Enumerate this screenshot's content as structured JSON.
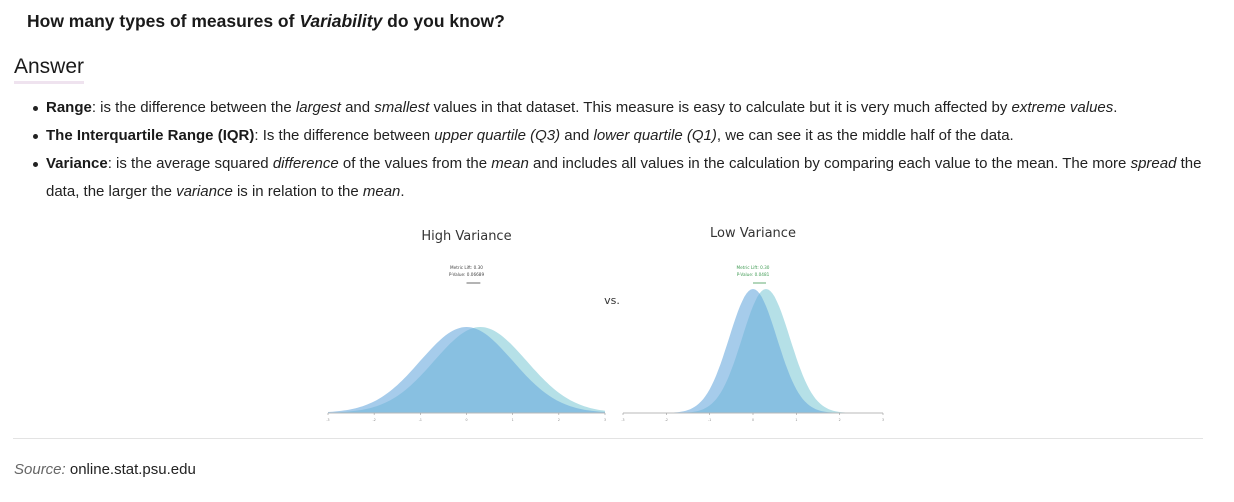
{
  "question": {
    "before": "How many types of measures of ",
    "emph": "Variability",
    "after": " do you know?"
  },
  "answer_title": "Answer",
  "definitions": [
    {
      "term": "Range",
      "parts": [
        {
          "t": ": is the difference between the ",
          "i": false
        },
        {
          "t": "largest",
          "i": true
        },
        {
          "t": " and ",
          "i": false
        },
        {
          "t": "smallest",
          "i": true
        },
        {
          "t": " values in that dataset. This measure is easy to calculate but it is very much affected by ",
          "i": false
        },
        {
          "t": "extreme values",
          "i": true
        },
        {
          "t": ".",
          "i": false
        }
      ]
    },
    {
      "term": "The Interquartile Range (IQR)",
      "parts": [
        {
          "t": ": Is the difference between ",
          "i": false
        },
        {
          "t": "upper quartile (Q3)",
          "i": true
        },
        {
          "t": " and ",
          "i": false
        },
        {
          "t": "lower quartile (Q1)",
          "i": true
        },
        {
          "t": ", we can see it as the middle half of the data.",
          "i": false
        }
      ]
    },
    {
      "term": "Variance",
      "parts": [
        {
          "t": ": is the average squared ",
          "i": false
        },
        {
          "t": "difference",
          "i": true
        },
        {
          "t": " of the values from the ",
          "i": false
        },
        {
          "t": "mean",
          "i": true
        },
        {
          "t": " and includes all values in the calculation by comparing each value to the mean. The more ",
          "i": false
        },
        {
          "t": "spread",
          "i": true
        },
        {
          "t": " the data, the larger the ",
          "i": false
        },
        {
          "t": "variance",
          "i": true
        },
        {
          "t": " is in relation to the ",
          "i": false
        },
        {
          "t": "mean",
          "i": true
        },
        {
          "t": ".",
          "i": false
        }
      ]
    }
  ],
  "figure": {
    "vs_label": "vs.",
    "colors": {
      "control": "#6aaadd",
      "variant": "#a8dbe3",
      "overlap": "#90c8e0",
      "left_note": "#444444",
      "right_note": "#3e9a52"
    },
    "panels": [
      {
        "title": "High Variance",
        "note_line1": "Metric Lift: 0.30",
        "note_line2": "P-Value: 0.06689",
        "sd": 1.0,
        "mean_a": 0,
        "mean_b": 0.3,
        "xmin": -3,
        "xmax": 3,
        "ticks": [
          "-3",
          "-2",
          "-1",
          "0",
          "1",
          "2",
          "3"
        ]
      },
      {
        "title": "Low Variance",
        "note_line1": "Metric Lift: 0.30",
        "note_line2": "P-Value: 0.0481",
        "sd": 0.55,
        "mean_a": 0,
        "mean_b": 0.3,
        "xmin": -3,
        "xmax": 3,
        "ticks": [
          "-3",
          "-2",
          "-1",
          "0",
          "1",
          "2",
          "3"
        ]
      }
    ]
  },
  "source": {
    "label": "Source:",
    "value": "online.stat.psu.edu"
  }
}
